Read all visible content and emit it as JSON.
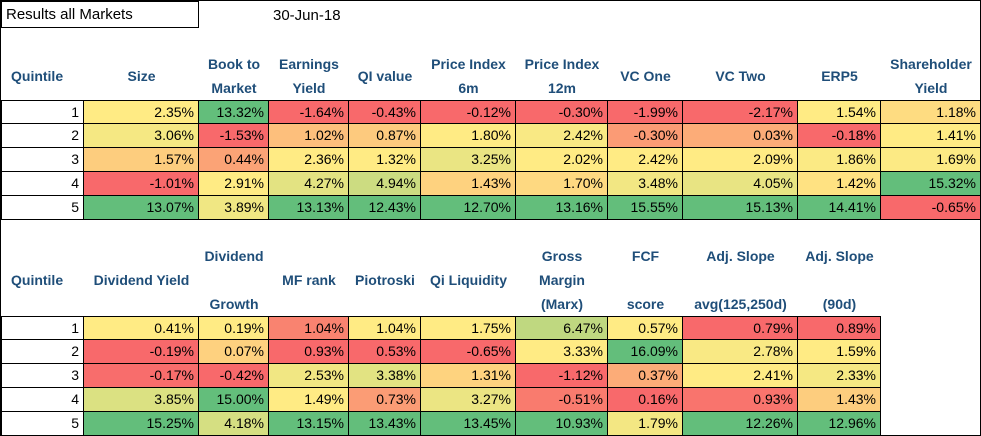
{
  "title": "Results all Markets",
  "date": "30-Jun-18",
  "table1": {
    "header": [
      [
        "Quintile"
      ],
      [
        "Size"
      ],
      [
        "Book to",
        "Market"
      ],
      [
        "Earnings",
        "Yield"
      ],
      [
        "QI value"
      ],
      [
        "Price Index",
        "6m"
      ],
      [
        "Price Index",
        "12m"
      ],
      [
        "VC One"
      ],
      [
        "VC Two"
      ],
      [
        "ERP5"
      ],
      [
        "Shareholder",
        "Yield"
      ]
    ],
    "rows": [
      [
        "1",
        "2.35%",
        "13.32%",
        "-1.64%",
        "-0.43%",
        "-0.12%",
        "-0.30%",
        "-1.99%",
        "-2.17%",
        "1.54%",
        "1.18%"
      ],
      [
        "2",
        "3.06%",
        "-1.53%",
        "1.02%",
        "0.87%",
        "1.80%",
        "2.42%",
        "-0.30%",
        "0.03%",
        "-0.18%",
        "1.41%"
      ],
      [
        "3",
        "1.57%",
        "0.44%",
        "2.36%",
        "1.32%",
        "3.25%",
        "2.02%",
        "2.42%",
        "2.09%",
        "1.86%",
        "1.69%"
      ],
      [
        "4",
        "-1.01%",
        "2.91%",
        "4.27%",
        "4.94%",
        "1.43%",
        "1.70%",
        "3.48%",
        "4.05%",
        "1.42%",
        "15.32%"
      ],
      [
        "5",
        "13.07%",
        "3.89%",
        "13.13%",
        "12.43%",
        "12.70%",
        "13.16%",
        "15.55%",
        "15.13%",
        "14.41%",
        "-0.65%"
      ]
    ]
  },
  "table2": {
    "header": [
      [
        "Quintile"
      ],
      [
        "Dividend Yield"
      ],
      [
        "Dividend",
        "Growth"
      ],
      [
        "MF rank"
      ],
      [
        "Piotroski"
      ],
      [
        "Qi Liquidity"
      ],
      [
        "Gross",
        "Margin",
        "(Marx)"
      ],
      [
        "FCF",
        "score"
      ],
      [
        "Adj. Slope",
        "avg(125,250d)"
      ],
      [
        "Adj. Slope",
        "(90d)"
      ]
    ],
    "rows": [
      [
        "1",
        "0.41%",
        "0.19%",
        "1.04%",
        "1.04%",
        "1.75%",
        "6.47%",
        "0.57%",
        "0.79%",
        "0.89%"
      ],
      [
        "2",
        "-0.19%",
        "0.07%",
        "0.93%",
        "0.53%",
        "-0.65%",
        "3.33%",
        "16.09%",
        "2.78%",
        "1.59%"
      ],
      [
        "3",
        "-0.17%",
        "-0.42%",
        "2.53%",
        "3.38%",
        "1.31%",
        "-1.12%",
        "0.37%",
        "2.41%",
        "2.33%"
      ],
      [
        "4",
        "3.85%",
        "15.00%",
        "1.49%",
        "0.73%",
        "3.27%",
        "-0.51%",
        "0.16%",
        "0.93%",
        "1.43%"
      ],
      [
        "5",
        "15.25%",
        "4.18%",
        "13.15%",
        "13.43%",
        "13.45%",
        "10.93%",
        "1.79%",
        "12.26%",
        "12.96%"
      ]
    ]
  }
}
